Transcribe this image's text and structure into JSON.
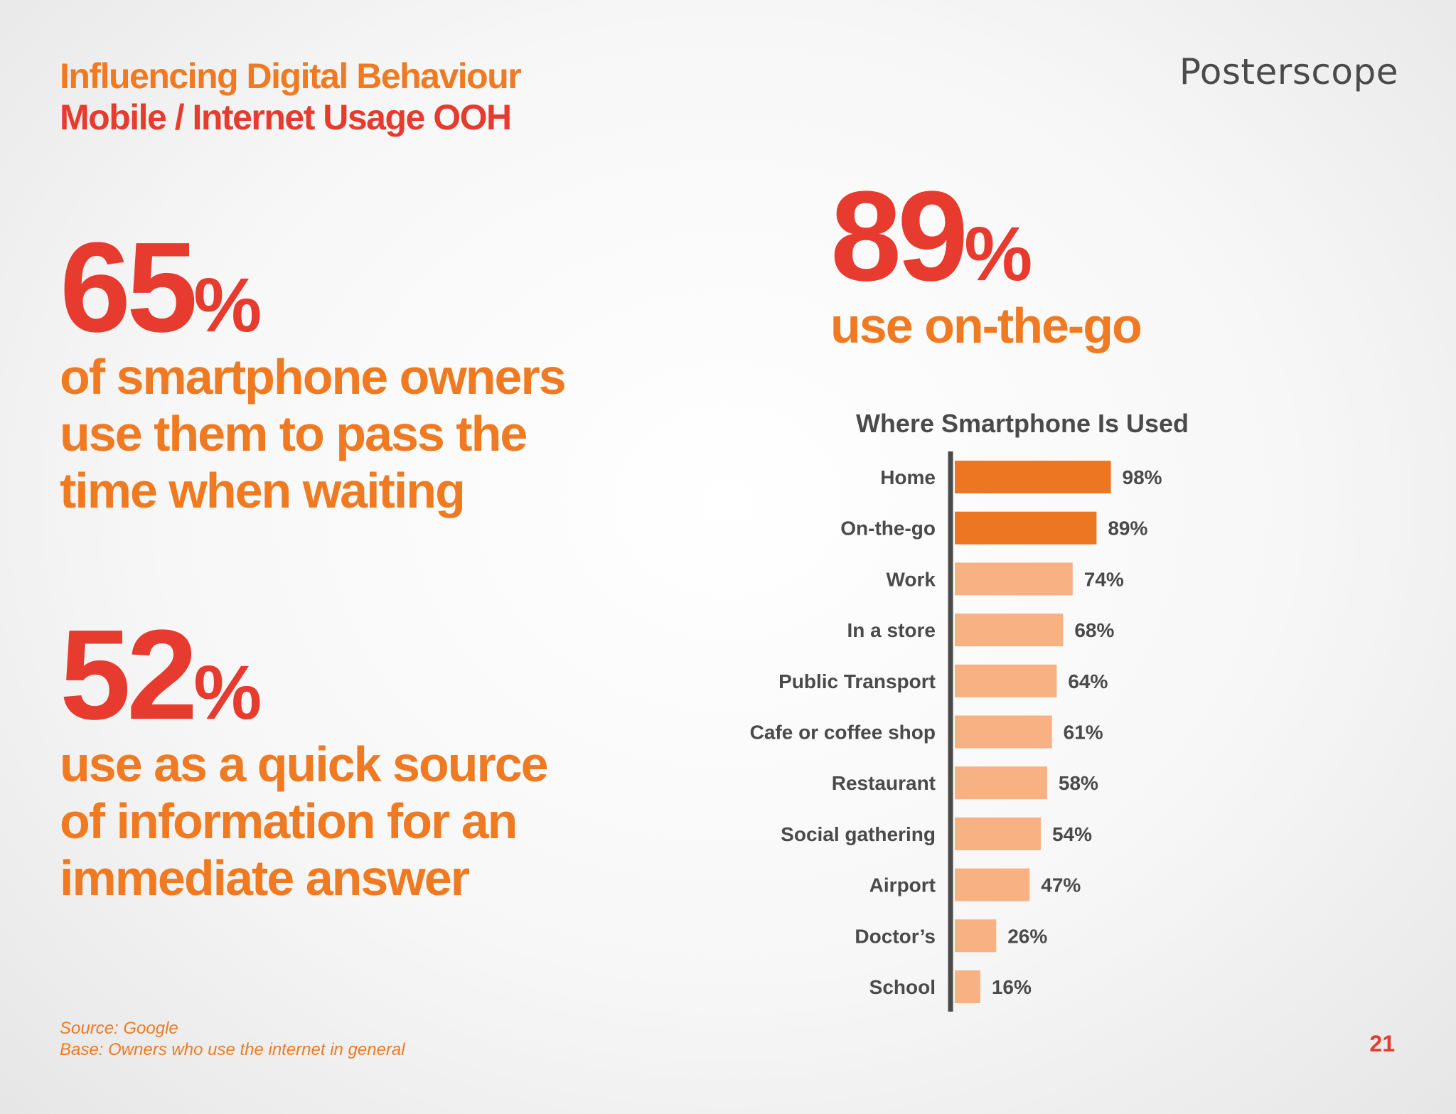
{
  "header": {
    "title_line1": "Influencing Digital Behaviour",
    "title_line2": "Mobile / Internet Usage OOH"
  },
  "brand": {
    "logo": "Posterscope"
  },
  "stats": [
    {
      "number": "65",
      "percent_sign": "%",
      "lines": [
        "of smartphone owners",
        "use them to pass the",
        "time when waiting"
      ]
    },
    {
      "number": "52",
      "percent_sign": "%",
      "lines": [
        "use as a quick source",
        "of information for an",
        "immediate answer"
      ]
    },
    {
      "number": "89",
      "percent_sign": "%",
      "lines": [
        "use on-the-go"
      ]
    }
  ],
  "footer": {
    "source": "Source: Google",
    "base": "Base: Owners who use the internet in general"
  },
  "page_number": "21",
  "colors": {
    "orange": "#ef7a22",
    "red": "#e63b2e",
    "highlight_bar": "#ed7622",
    "light_bar": "#f8b182",
    "axis": "#4a4a4a",
    "text_dark": "#4a4a4a"
  },
  "chart_data": {
    "type": "bar",
    "orientation": "horizontal",
    "title": "Where Smartphone Is Used",
    "categories": [
      "Home",
      "On-the-go",
      "Work",
      "In a store",
      "Public Transport",
      "Cafe or coffee shop",
      "Restaurant",
      "Social gathering",
      "Airport",
      "Doctor’s",
      "School"
    ],
    "values": [
      98,
      89,
      74,
      68,
      64,
      61,
      58,
      54,
      47,
      26,
      16
    ],
    "value_labels": [
      "98%",
      "89%",
      "74%",
      "68%",
      "64%",
      "61%",
      "58%",
      "54%",
      "47%",
      "26%",
      "16%"
    ],
    "highlighted": [
      "Home",
      "On-the-go"
    ],
    "xlim": [
      0,
      100
    ],
    "xlabel": "",
    "ylabel": "",
    "grid": false
  }
}
